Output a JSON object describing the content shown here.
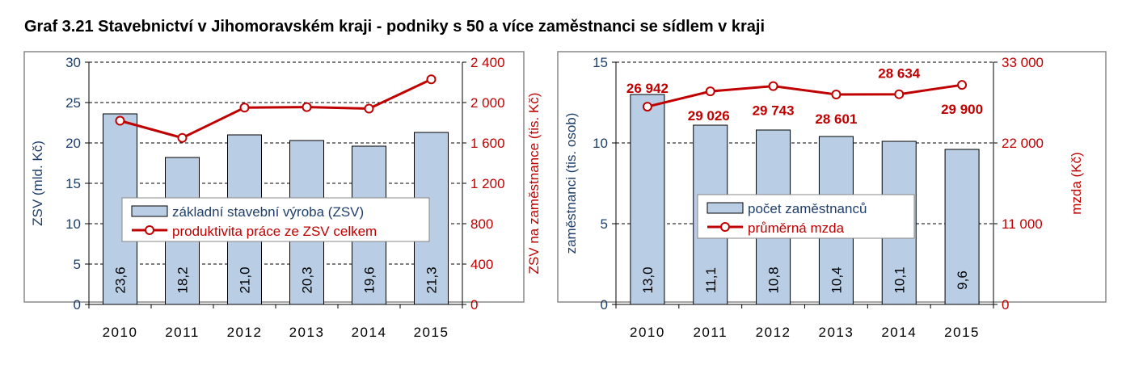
{
  "title": "Graf 3.21 Stavebnictví v Jihomoravském kraji - podniky s 50 a více zaměstnanci se sídlem v kraji",
  "colors": {
    "bar": "#b9cde5",
    "bar_border": "#000000",
    "line": "#c00000",
    "left_axis": "#1f3f6b",
    "right_axis": "#c00000"
  },
  "chart_data": [
    {
      "type": "bar+line",
      "categories": [
        "2010",
        "2011",
        "2012",
        "2013",
        "2014",
        "2015"
      ],
      "ylabel": "ZSV  (mld. Kč)",
      "y2label": "ZSV na zaměstnance  (tis. Kč)",
      "ylim": [
        0,
        30
      ],
      "yticks": [
        "0",
        "5",
        "10",
        "15",
        "20",
        "25",
        "30"
      ],
      "y2lim": [
        0,
        2400
      ],
      "y2ticks": [
        "0",
        "400",
        "800",
        "1 200",
        "1 600",
        "2 000",
        "2 400"
      ],
      "grid": "dashed horizontal",
      "legend_position": "center",
      "series": [
        {
          "name": "základní stavební výroba (ZSV)",
          "type": "bar",
          "axis": "left",
          "values": [
            23.6,
            18.2,
            21.0,
            20.3,
            19.6,
            21.3
          ],
          "labels": [
            "23,6",
            "18,2",
            "21,0",
            "20,3",
            "19,6",
            "21,3"
          ]
        },
        {
          "name": "produktivita práce ze ZSV celkem",
          "type": "line",
          "axis": "right",
          "values": [
            1820,
            1650,
            1950,
            1955,
            1940,
            2230
          ]
        }
      ]
    },
    {
      "type": "bar+line",
      "categories": [
        "2010",
        "2011",
        "2012",
        "2013",
        "2014",
        "2015"
      ],
      "ylabel": "zaměstnanci (tis. osob)",
      "y2label": "mzda (Kč)",
      "ylim": [
        0,
        15
      ],
      "yticks": [
        "0",
        "5",
        "10",
        "15"
      ],
      "y2lim": [
        0,
        33000
      ],
      "y2ticks": [
        "0",
        "11 000",
        "22 000",
        "33 000"
      ],
      "grid": "dashed horizontal",
      "legend_position": "center",
      "series": [
        {
          "name": "počet zaměstnanců",
          "type": "bar",
          "axis": "left",
          "values": [
            13.0,
            11.1,
            10.8,
            10.4,
            10.1,
            9.6
          ],
          "labels": [
            "13,0",
            "11,1",
            "10,8",
            "10,4",
            "10,1",
            "9,6"
          ]
        },
        {
          "name": "průměrná mzda",
          "type": "line",
          "axis": "right",
          "values": [
            26942,
            29026,
            29743,
            28601,
            28634,
            29900
          ],
          "labels": [
            "26 942",
            "29 026",
            "29 743",
            "28 601",
            "28 634",
            "29 900"
          ]
        }
      ]
    }
  ]
}
